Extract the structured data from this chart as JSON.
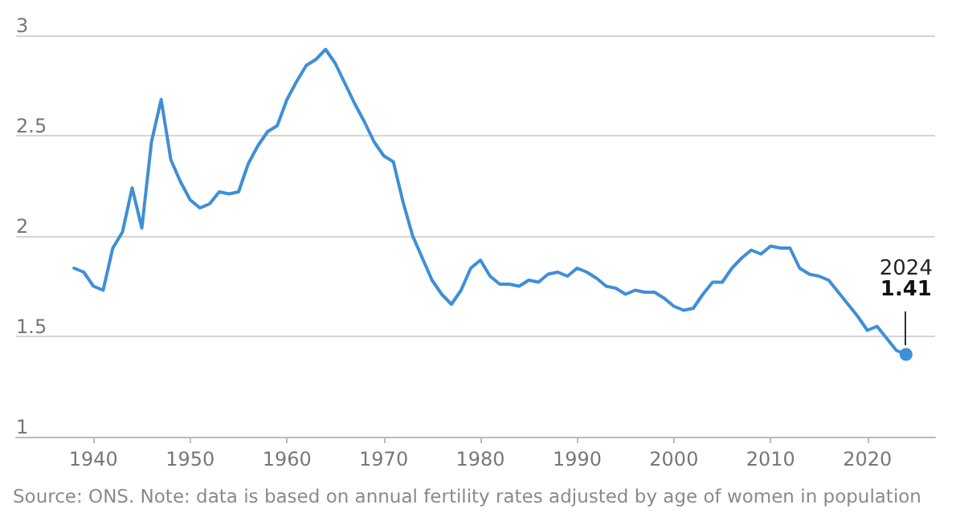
{
  "chart_data": {
    "type": "line",
    "x": [
      1938,
      1939,
      1940,
      1941,
      1942,
      1943,
      1944,
      1945,
      1946,
      1947,
      1948,
      1949,
      1950,
      1951,
      1952,
      1953,
      1954,
      1955,
      1956,
      1957,
      1958,
      1959,
      1960,
      1961,
      1962,
      1963,
      1964,
      1965,
      1966,
      1967,
      1968,
      1969,
      1970,
      1971,
      1972,
      1973,
      1974,
      1975,
      1976,
      1977,
      1978,
      1979,
      1980,
      1981,
      1982,
      1983,
      1984,
      1985,
      1986,
      1987,
      1988,
      1989,
      1990,
      1991,
      1992,
      1993,
      1994,
      1995,
      1996,
      1997,
      1998,
      1999,
      2000,
      2001,
      2002,
      2003,
      2004,
      2005,
      2006,
      2007,
      2008,
      2009,
      2010,
      2011,
      2012,
      2013,
      2014,
      2015,
      2016,
      2017,
      2018,
      2019,
      2020,
      2021,
      2022,
      2023,
      2024
    ],
    "series": [
      {
        "color": "#3f8fd6",
        "values": [
          1.84,
          1.82,
          1.75,
          1.73,
          1.94,
          2.02,
          2.24,
          2.04,
          2.47,
          2.68,
          2.38,
          2.27,
          2.18,
          2.14,
          2.16,
          2.22,
          2.21,
          2.22,
          2.36,
          2.45,
          2.52,
          2.55,
          2.68,
          2.77,
          2.85,
          2.88,
          2.93,
          2.86,
          2.76,
          2.66,
          2.57,
          2.47,
          2.4,
          2.37,
          2.17,
          2.0,
          1.89,
          1.78,
          1.71,
          1.66,
          1.73,
          1.84,
          1.88,
          1.8,
          1.76,
          1.76,
          1.75,
          1.78,
          1.77,
          1.81,
          1.82,
          1.8,
          1.84,
          1.82,
          1.79,
          1.75,
          1.74,
          1.71,
          1.73,
          1.72,
          1.72,
          1.69,
          1.65,
          1.63,
          1.64,
          1.71,
          1.77,
          1.77,
          1.84,
          1.89,
          1.93,
          1.91,
          1.95,
          1.94,
          1.94,
          1.84,
          1.81,
          1.8,
          1.78,
          1.72,
          1.66,
          1.6,
          1.53,
          1.55,
          1.49,
          1.43,
          1.41
        ]
      }
    ],
    "xlim": [
      1932,
      2027
    ],
    "xticks": [
      1940,
      1950,
      1960,
      1970,
      1980,
      1990,
      2000,
      2010,
      2020
    ],
    "ylim": [
      1,
      3
    ],
    "yticks": [
      1,
      1.5,
      2,
      2.5,
      3
    ],
    "grid": "y",
    "line_style": "solid",
    "marker": "none",
    "annotations": [
      {
        "text": "2024\n1.41",
        "x": 2024,
        "y": 1.41
      },
      "Source: ONS. Note: data is based on annual fertility rates adjusted by age of women in population"
    ]
  }
}
